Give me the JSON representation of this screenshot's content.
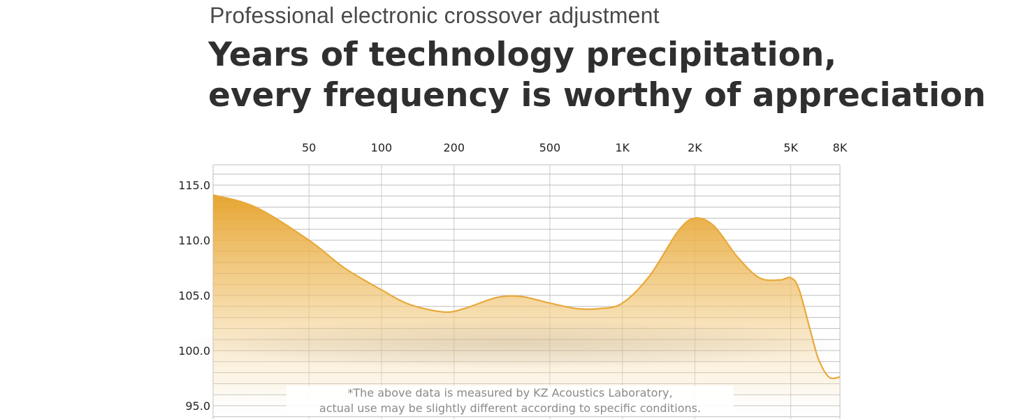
{
  "header": {
    "subtitle": "Professional electronic crossover adjustment",
    "headline_line1": "Years of technology precipitation,",
    "headline_line2": "every frequency is worthy of appreciation"
  },
  "footnote": {
    "line1": "*The above data is measured by KZ Acoustics Laboratory,",
    "line2": "actual use may be slightly different according to specific conditions."
  },
  "colors": {
    "curve_stroke": "#e8a93a",
    "fill_top": "#e6a22c",
    "grid": "#bdbdbd"
  },
  "chart_data": {
    "type": "area",
    "title": "",
    "xlabel": "",
    "ylabel": "",
    "x_scale": "log",
    "x_ticks": [
      {
        "value": 50,
        "label": "50"
      },
      {
        "value": 100,
        "label": "100"
      },
      {
        "value": 200,
        "label": "200"
      },
      {
        "value": 500,
        "label": "500"
      },
      {
        "value": 1000,
        "label": "1K"
      },
      {
        "value": 2000,
        "label": "2K"
      },
      {
        "value": 5000,
        "label": "5K"
      },
      {
        "value": 8000,
        "label": "8K"
      }
    ],
    "y_ticks": [
      {
        "value": 115,
        "label": "115.0"
      },
      {
        "value": 110,
        "label": "110.0"
      },
      {
        "value": 105,
        "label": "105.0"
      },
      {
        "value": 100,
        "label": "100.0"
      },
      {
        "value": 95,
        "label": "95.0"
      }
    ],
    "xlim": [
      20,
      8000
    ],
    "ylim": [
      94,
      118
    ],
    "grid": true,
    "series": [
      {
        "x": [
          20,
          30,
          50,
          70,
          100,
          130,
          180,
          220,
          300,
          380,
          500,
          650,
          800,
          1000,
          1300,
          1700,
          2000,
          2400,
          3000,
          3700,
          4500,
          5000,
          5400,
          6000,
          6500,
          7200,
          8000
        ],
        "y": [
          114.1,
          113.0,
          110.0,
          107.5,
          105.5,
          104.2,
          103.5,
          103.8,
          104.8,
          104.9,
          104.3,
          103.8,
          103.8,
          104.3,
          106.8,
          110.8,
          112.0,
          111.3,
          108.5,
          106.6,
          106.4,
          106.6,
          105.6,
          102.0,
          99.3,
          97.6,
          97.6
        ]
      }
    ]
  }
}
